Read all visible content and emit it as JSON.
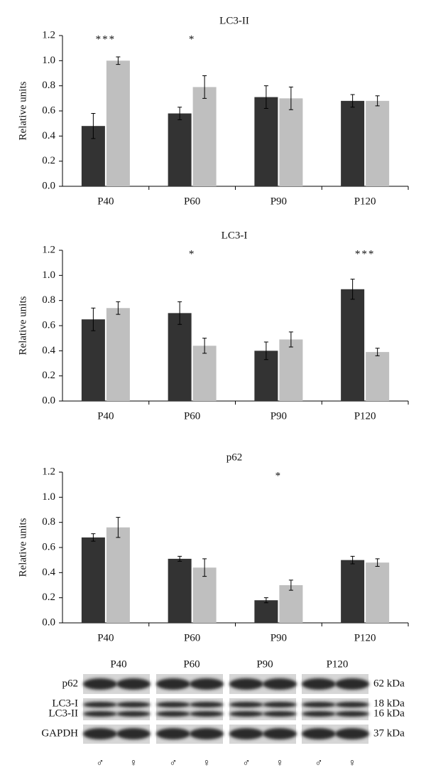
{
  "chart_data": [
    {
      "type": "bar",
      "title": "LC3-II",
      "y_label": "Relative units",
      "categories": [
        "P40",
        "P60",
        "P90",
        "P120"
      ],
      "series": [
        {
          "color": "#333333",
          "values": [
            0.48,
            0.58,
            0.71,
            0.68
          ],
          "errors": [
            0.1,
            0.05,
            0.09,
            0.05
          ]
        },
        {
          "color": "#bfbfbf",
          "values": [
            1.0,
            0.79,
            0.7,
            0.68
          ],
          "errors": [
            0.03,
            0.09,
            0.09,
            0.04
          ]
        }
      ],
      "ylim": [
        0,
        1.2
      ],
      "yticks": [
        {
          "value": 0,
          "label": "0.0"
        },
        {
          "value": 0.2,
          "label": "0.2"
        },
        {
          "value": 0.4,
          "label": "0.4"
        },
        {
          "value": 0.6,
          "label": "0.6"
        },
        {
          "value": 0.8,
          "label": "0.8"
        },
        {
          "value": 1,
          "label": "1.0"
        },
        {
          "value": 1.2,
          "label": "1.2"
        }
      ],
      "annotations": [
        {
          "text": "***",
          "category": "P40"
        },
        {
          "text": "*",
          "category": "P60"
        }
      ]
    },
    {
      "type": "bar",
      "title": "LC3-I",
      "y_label": "Relative units",
      "categories": [
        "P40",
        "P60",
        "P90",
        "P120"
      ],
      "series": [
        {
          "color": "#333333",
          "values": [
            0.65,
            0.7,
            0.4,
            0.89
          ],
          "errors": [
            0.09,
            0.09,
            0.07,
            0.08
          ]
        },
        {
          "color": "#bfbfbf",
          "values": [
            0.74,
            0.44,
            0.49,
            0.39
          ],
          "errors": [
            0.05,
            0.06,
            0.06,
            0.03
          ]
        }
      ],
      "ylim": [
        0,
        1.2
      ],
      "yticks": [
        {
          "value": 0,
          "label": "0.0"
        },
        {
          "value": 0.2,
          "label": "0.2"
        },
        {
          "value": 0.4,
          "label": "0.4"
        },
        {
          "value": 0.6,
          "label": "0.6"
        },
        {
          "value": 0.8,
          "label": "0.8"
        },
        {
          "value": 1,
          "label": "1.0"
        },
        {
          "value": 1.2,
          "label": "1.2"
        }
      ],
      "annotations": [
        {
          "text": "*",
          "category": "P60"
        },
        {
          "text": "***",
          "category": "P120"
        }
      ]
    },
    {
      "type": "bar",
      "title": "p62",
      "y_label": "Relative units",
      "categories": [
        "P40",
        "P60",
        "P90",
        "P120"
      ],
      "series": [
        {
          "color": "#333333",
          "values": [
            0.68,
            0.51,
            0.18,
            0.5
          ],
          "errors": [
            0.03,
            0.02,
            0.02,
            0.03
          ]
        },
        {
          "color": "#bfbfbf",
          "values": [
            0.76,
            0.44,
            0.3,
            0.48
          ],
          "errors": [
            0.08,
            0.07,
            0.04,
            0.03
          ]
        }
      ],
      "ylim": [
        0,
        1.2
      ],
      "yticks": [
        {
          "value": 0,
          "label": "0.0"
        },
        {
          "value": 0.2,
          "label": "0.2"
        },
        {
          "value": 0.4,
          "label": "0.4"
        },
        {
          "value": 0.6,
          "label": "0.6"
        },
        {
          "value": 0.8,
          "label": "0.8"
        },
        {
          "value": 1,
          "label": "1.0"
        },
        {
          "value": 1.2,
          "label": "1.2"
        }
      ],
      "annotations": [
        {
          "text": "*",
          "category": "P90"
        }
      ]
    }
  ],
  "blot": {
    "columns": [
      "P40",
      "P60",
      "P90",
      "P120"
    ],
    "rows": [
      "p62",
      "LC3-I",
      "LC3-II",
      "GAPDH"
    ],
    "sizes": [
      "62 kDa",
      "18 kDa",
      "16 kDa",
      "37 kDa"
    ],
    "sexes": [
      "♂",
      "♀",
      "♂",
      "♀",
      "♂",
      "♀",
      "♂",
      "♀"
    ]
  }
}
